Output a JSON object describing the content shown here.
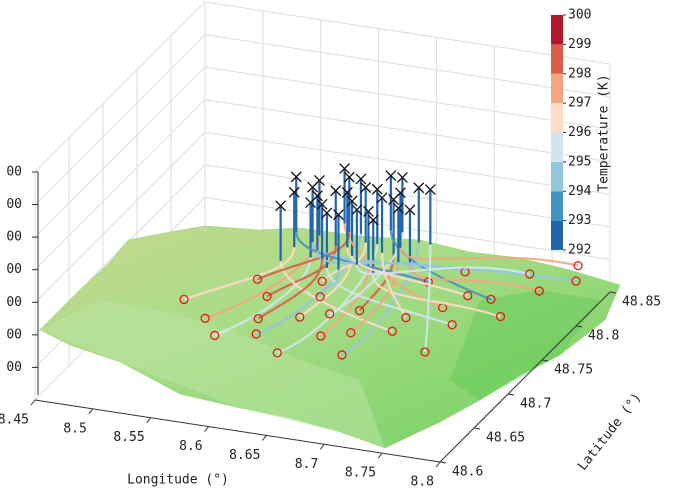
{
  "chart_data": {
    "type": "trajectory3d",
    "x_label": "Longitude (°)",
    "y_label": "Latitude (°)",
    "xlim": [
      8.45,
      8.8
    ],
    "xticks": [
      8.45,
      8.5,
      8.55,
      8.6,
      8.65,
      8.7,
      8.75,
      8.8
    ],
    "ylim": [
      48.6,
      48.85
    ],
    "yticks": [
      48.6,
      48.65,
      48.7,
      48.75,
      48.8,
      48.85
    ],
    "z_tick_labels": [
      "00",
      "00",
      "00",
      "00",
      "00",
      "00",
      "00"
    ],
    "colorbar": {
      "label": "Temperature (K)",
      "ticks": [
        292,
        293,
        294,
        295,
        296,
        297,
        298,
        299,
        300
      ],
      "colors": [
        "#2166ac",
        "#4393c3",
        "#92c5de",
        "#d1e5f0",
        "#fddbc7",
        "#f4a582",
        "#d6604d",
        "#b2182b"
      ]
    },
    "grid": true,
    "trajectories": {
      "start_lon": [
        8.58,
        8.59,
        8.6,
        8.61,
        8.62,
        8.63,
        8.64,
        8.65,
        8.66,
        8.67,
        8.58,
        8.6,
        8.62,
        8.64,
        8.66,
        8.68,
        8.59,
        8.61,
        8.63,
        8.65,
        8.67,
        8.57,
        8.6,
        8.62,
        8.64,
        8.66,
        8.61,
        8.63,
        8.65,
        8.68
      ],
      "start_lat": [
        48.76,
        48.78,
        48.75,
        48.77,
        48.79,
        48.76,
        48.78,
        48.75,
        48.77,
        48.79,
        48.74,
        48.8,
        48.74,
        48.8,
        48.74,
        48.76,
        48.77,
        48.79,
        48.78,
        48.8,
        48.76,
        48.78,
        48.76,
        48.77,
        48.75,
        48.78,
        48.75,
        48.74,
        48.77,
        48.79
      ],
      "end_lon": [
        8.52,
        8.55,
        8.57,
        8.58,
        8.6,
        8.62,
        8.63,
        8.65,
        8.66,
        8.68,
        8.7,
        8.72,
        8.74,
        8.75,
        8.77,
        8.78,
        8.8,
        8.56,
        8.61,
        8.64,
        8.67,
        8.69,
        8.71,
        8.73,
        8.76,
        8.79,
        8.59,
        8.62,
        8.7,
        8.74
      ],
      "end_lat": [
        48.7,
        48.68,
        48.66,
        48.72,
        48.67,
        48.7,
        48.65,
        48.68,
        48.72,
        48.66,
        48.7,
        48.74,
        48.72,
        48.76,
        48.74,
        48.78,
        48.8,
        48.74,
        48.75,
        48.71,
        48.69,
        48.77,
        48.79,
        48.76,
        48.8,
        48.82,
        48.69,
        48.73,
        48.72,
        48.68
      ],
      "end_temperature": [
        296.5,
        297.2,
        295.4,
        298.1,
        294.6,
        296.8,
        295.2,
        297.6,
        298.4,
        294.3,
        296.1,
        297.9,
        295.7,
        293.8,
        296.9,
        297.4,
        294.9,
        298.6,
        296.3,
        295.1,
        297.1,
        293.6,
        294.4,
        296.6,
        295.8,
        297.7,
        298.2,
        294.8,
        296.0,
        295.5
      ]
    }
  }
}
